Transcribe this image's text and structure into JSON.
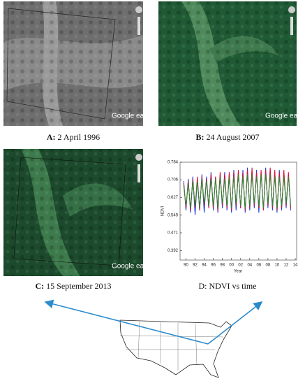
{
  "panels": [
    {
      "letter": "A:",
      "caption": "2 April 1996",
      "logo": "Google earth"
    },
    {
      "letter": "B:",
      "caption": "24 August 2007",
      "logo": "Google earth"
    },
    {
      "letter": "C:",
      "caption": "15 September 2013",
      "logo": "Google earth"
    },
    {
      "caption": "D: NDVI vs time"
    }
  ],
  "chart_data": {
    "type": "line",
    "xlabel": "Year",
    "ylabel": "NDVI",
    "x": [
      1989.5,
      1990,
      1990.5,
      1991,
      1991.5,
      1992,
      1992.5,
      1993,
      1993.5,
      1994,
      1994.5,
      1995,
      1995.5,
      1996,
      1996.5,
      1997,
      1997.5,
      1998,
      1998.5,
      1999,
      1999.5,
      2000,
      2000.5,
      2001,
      2001.5,
      2002,
      2002.5,
      2003,
      2003.5,
      2004,
      2004.5,
      2005,
      2005.5,
      2006,
      2006.5,
      2007,
      2007.5,
      2008,
      2008.5,
      2009,
      2009.5,
      2010,
      2010.5,
      2011,
      2011.5,
      2012,
      2012.5,
      2013
    ],
    "series": [
      {
        "color": "#1f3fd6",
        "values": [
          0.7,
          0.57,
          0.71,
          0.56,
          0.72,
          0.55,
          0.71,
          0.57,
          0.73,
          0.56,
          0.72,
          0.58,
          0.74,
          0.57,
          0.72,
          0.56,
          0.73,
          0.58,
          0.74,
          0.57,
          0.73,
          0.56,
          0.75,
          0.57,
          0.74,
          0.58,
          0.75,
          0.56,
          0.76,
          0.57,
          0.74,
          0.58,
          0.75,
          0.56,
          0.74,
          0.57,
          0.76,
          0.58,
          0.75,
          0.57,
          0.74,
          0.56,
          0.75,
          0.57,
          0.74,
          0.58,
          0.73,
          0.57
        ]
      },
      {
        "color": "#d4143c",
        "values": [
          0.69,
          0.58,
          0.7,
          0.57,
          0.71,
          0.58,
          0.72,
          0.57,
          0.72,
          0.59,
          0.71,
          0.58,
          0.73,
          0.58,
          0.72,
          0.57,
          0.74,
          0.59,
          0.73,
          0.58,
          0.74,
          0.57,
          0.74,
          0.59,
          0.75,
          0.58,
          0.74,
          0.57,
          0.75,
          0.58,
          0.76,
          0.59,
          0.74,
          0.58,
          0.75,
          0.57,
          0.75,
          0.59,
          0.76,
          0.58,
          0.75,
          0.57,
          0.74,
          0.58,
          0.75,
          0.59,
          0.74,
          0.58
        ]
      },
      {
        "color": "#2a8a2a",
        "values": [
          0.68,
          0.59,
          0.69,
          0.58,
          0.7,
          0.59,
          0.7,
          0.58,
          0.71,
          0.6,
          0.7,
          0.59,
          0.71,
          0.59,
          0.71,
          0.58,
          0.72,
          0.6,
          0.71,
          0.59,
          0.72,
          0.58,
          0.72,
          0.6,
          0.73,
          0.59,
          0.72,
          0.58,
          0.73,
          0.59,
          0.73,
          0.6,
          0.72,
          0.59,
          0.73,
          0.58,
          0.73,
          0.6,
          0.73,
          0.59,
          0.72,
          0.58,
          0.72,
          0.59,
          0.72,
          0.6,
          0.72,
          0.59
        ]
      }
    ],
    "xlim": [
      1988.7,
      2014.3
    ],
    "xticks": [
      {
        "value": 1990,
        "label": "90"
      },
      {
        "value": 1992,
        "label": "92"
      },
      {
        "value": 1994,
        "label": "94"
      },
      {
        "value": 1996,
        "label": "96"
      },
      {
        "value": 1998,
        "label": "98"
      },
      {
        "value": 2000,
        "label": "00"
      },
      {
        "value": 2002,
        "label": "02"
      },
      {
        "value": 2004,
        "label": "04"
      },
      {
        "value": 2006,
        "label": "06"
      },
      {
        "value": 2008,
        "label": "08"
      },
      {
        "value": 2010,
        "label": "10"
      },
      {
        "value": 2012,
        "label": "12"
      },
      {
        "value": 2014,
        "label": "14"
      }
    ],
    "ylim": [
      0.35,
      0.784
    ],
    "yticks": [
      0.392,
      0.471,
      0.549,
      0.627,
      0.706,
      0.784
    ]
  }
}
